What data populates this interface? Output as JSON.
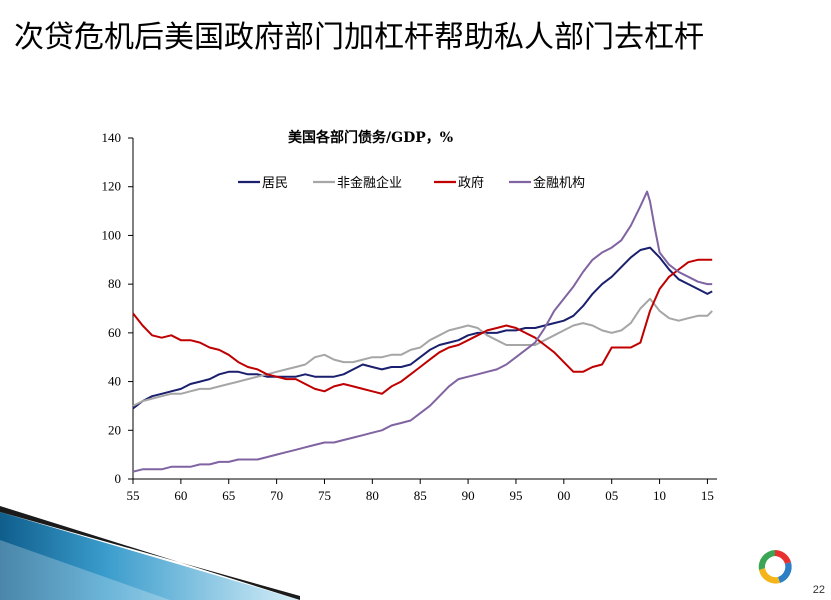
{
  "slide": {
    "title": "次贷危机后美国政府部门加杠杆帮助私人部门去杠杆",
    "page_number": "22"
  },
  "chart_data": {
    "type": "line",
    "title": "美国各部门债务/GDP，%",
    "xlabel": "",
    "ylabel": "",
    "xlim": [
      1955,
      2016
    ],
    "ylim": [
      0,
      140
    ],
    "yticks": [
      0,
      20,
      40,
      60,
      80,
      100,
      120,
      140
    ],
    "xticks": [
      {
        "value": 1955,
        "label": "55"
      },
      {
        "value": 1960,
        "label": "60"
      },
      {
        "value": 1965,
        "label": "65"
      },
      {
        "value": 1970,
        "label": "70"
      },
      {
        "value": 1975,
        "label": "75"
      },
      {
        "value": 1980,
        "label": "80"
      },
      {
        "value": 1985,
        "label": "85"
      },
      {
        "value": 1990,
        "label": "90"
      },
      {
        "value": 1995,
        "label": "95"
      },
      {
        "value": 2000,
        "label": "00"
      },
      {
        "value": 2005,
        "label": "05"
      },
      {
        "value": 2010,
        "label": "10"
      },
      {
        "value": 2015,
        "label": "15"
      }
    ],
    "grid": false,
    "legend_position": "top-center",
    "series": [
      {
        "name": "居民",
        "color": "#1a1f6e",
        "points": [
          [
            1955,
            29
          ],
          [
            1956,
            32
          ],
          [
            1957,
            34
          ],
          [
            1958,
            35
          ],
          [
            1959,
            36
          ],
          [
            1960,
            37
          ],
          [
            1961,
            39
          ],
          [
            1962,
            40
          ],
          [
            1963,
            41
          ],
          [
            1964,
            43
          ],
          [
            1965,
            44
          ],
          [
            1966,
            44
          ],
          [
            1967,
            43
          ],
          [
            1968,
            43
          ],
          [
            1969,
            42
          ],
          [
            1970,
            42
          ],
          [
            1971,
            42
          ],
          [
            1972,
            42
          ],
          [
            1973,
            43
          ],
          [
            1974,
            42
          ],
          [
            1975,
            42
          ],
          [
            1976,
            42
          ],
          [
            1977,
            43
          ],
          [
            1978,
            45
          ],
          [
            1979,
            47
          ],
          [
            1980,
            46
          ],
          [
            1981,
            45
          ],
          [
            1982,
            46
          ],
          [
            1983,
            46
          ],
          [
            1984,
            47
          ],
          [
            1985,
            50
          ],
          [
            1986,
            53
          ],
          [
            1987,
            55
          ],
          [
            1988,
            56
          ],
          [
            1989,
            57
          ],
          [
            1990,
            59
          ],
          [
            1991,
            60
          ],
          [
            1992,
            60
          ],
          [
            1993,
            60
          ],
          [
            1994,
            61
          ],
          [
            1995,
            61
          ],
          [
            1996,
            62
          ],
          [
            1997,
            62
          ],
          [
            1998,
            63
          ],
          [
            1999,
            64
          ],
          [
            2000,
            65
          ],
          [
            2001,
            67
          ],
          [
            2002,
            71
          ],
          [
            2003,
            76
          ],
          [
            2004,
            80
          ],
          [
            2005,
            83
          ],
          [
            2006,
            87
          ],
          [
            2007,
            91
          ],
          [
            2008,
            94
          ],
          [
            2009,
            95
          ],
          [
            2010,
            91
          ],
          [
            2011,
            86
          ],
          [
            2012,
            82
          ],
          [
            2013,
            80
          ],
          [
            2014,
            78
          ],
          [
            2015,
            76
          ],
          [
            2015.5,
            77
          ]
        ]
      },
      {
        "name": "非金融企业",
        "color": "#a6a6a6",
        "points": [
          [
            1955,
            30
          ],
          [
            1956,
            32
          ],
          [
            1957,
            33
          ],
          [
            1958,
            34
          ],
          [
            1959,
            35
          ],
          [
            1960,
            35
          ],
          [
            1961,
            36
          ],
          [
            1962,
            37
          ],
          [
            1963,
            37
          ],
          [
            1964,
            38
          ],
          [
            1965,
            39
          ],
          [
            1966,
            40
          ],
          [
            1967,
            41
          ],
          [
            1968,
            42
          ],
          [
            1969,
            43
          ],
          [
            1970,
            44
          ],
          [
            1971,
            45
          ],
          [
            1972,
            46
          ],
          [
            1973,
            47
          ],
          [
            1974,
            50
          ],
          [
            1975,
            51
          ],
          [
            1976,
            49
          ],
          [
            1977,
            48
          ],
          [
            1978,
            48
          ],
          [
            1979,
            49
          ],
          [
            1980,
            50
          ],
          [
            1981,
            50
          ],
          [
            1982,
            51
          ],
          [
            1983,
            51
          ],
          [
            1984,
            53
          ],
          [
            1985,
            54
          ],
          [
            1986,
            57
          ],
          [
            1987,
            59
          ],
          [
            1988,
            61
          ],
          [
            1989,
            62
          ],
          [
            1990,
            63
          ],
          [
            1991,
            62
          ],
          [
            1992,
            59
          ],
          [
            1993,
            57
          ],
          [
            1994,
            55
          ],
          [
            1995,
            55
          ],
          [
            1996,
            55
          ],
          [
            1997,
            55
          ],
          [
            1998,
            57
          ],
          [
            1999,
            59
          ],
          [
            2000,
            61
          ],
          [
            2001,
            63
          ],
          [
            2002,
            64
          ],
          [
            2003,
            63
          ],
          [
            2004,
            61
          ],
          [
            2005,
            60
          ],
          [
            2006,
            61
          ],
          [
            2007,
            64
          ],
          [
            2008,
            70
          ],
          [
            2009,
            74
          ],
          [
            2010,
            69
          ],
          [
            2011,
            66
          ],
          [
            2012,
            65
          ],
          [
            2013,
            66
          ],
          [
            2014,
            67
          ],
          [
            2015,
            67
          ],
          [
            2015.5,
            69
          ]
        ]
      },
      {
        "name": "政府",
        "color": "#c00000",
        "points": [
          [
            1955,
            68
          ],
          [
            1956,
            63
          ],
          [
            1957,
            59
          ],
          [
            1958,
            58
          ],
          [
            1959,
            59
          ],
          [
            1960,
            57
          ],
          [
            1961,
            57
          ],
          [
            1962,
            56
          ],
          [
            1963,
            54
          ],
          [
            1964,
            53
          ],
          [
            1965,
            51
          ],
          [
            1966,
            48
          ],
          [
            1967,
            46
          ],
          [
            1968,
            45
          ],
          [
            1969,
            43
          ],
          [
            1970,
            42
          ],
          [
            1971,
            41
          ],
          [
            1972,
            41
          ],
          [
            1973,
            39
          ],
          [
            1974,
            37
          ],
          [
            1975,
            36
          ],
          [
            1976,
            38
          ],
          [
            1977,
            39
          ],
          [
            1978,
            38
          ],
          [
            1979,
            37
          ],
          [
            1980,
            36
          ],
          [
            1981,
            35
          ],
          [
            1982,
            38
          ],
          [
            1983,
            40
          ],
          [
            1984,
            43
          ],
          [
            1985,
            46
          ],
          [
            1986,
            49
          ],
          [
            1987,
            52
          ],
          [
            1988,
            54
          ],
          [
            1989,
            55
          ],
          [
            1990,
            57
          ],
          [
            1991,
            59
          ],
          [
            1992,
            61
          ],
          [
            1993,
            62
          ],
          [
            1994,
            63
          ],
          [
            1995,
            62
          ],
          [
            1996,
            60
          ],
          [
            1997,
            58
          ],
          [
            1998,
            55
          ],
          [
            1999,
            52
          ],
          [
            2000,
            48
          ],
          [
            2001,
            44
          ],
          [
            2002,
            44
          ],
          [
            2003,
            46
          ],
          [
            2004,
            47
          ],
          [
            2005,
            54
          ],
          [
            2006,
            54
          ],
          [
            2007,
            54
          ],
          [
            2008,
            56
          ],
          [
            2009,
            69
          ],
          [
            2010,
            78
          ],
          [
            2011,
            83
          ],
          [
            2012,
            86
          ],
          [
            2013,
            89
          ],
          [
            2014,
            90
          ],
          [
            2015,
            90
          ],
          [
            2015.5,
            90
          ]
        ]
      },
      {
        "name": "金融机构",
        "color": "#8064a2",
        "points": [
          [
            1955,
            3
          ],
          [
            1956,
            4
          ],
          [
            1957,
            4
          ],
          [
            1958,
            4
          ],
          [
            1959,
            5
          ],
          [
            1960,
            5
          ],
          [
            1961,
            5
          ],
          [
            1962,
            6
          ],
          [
            1963,
            6
          ],
          [
            1964,
            7
          ],
          [
            1965,
            7
          ],
          [
            1966,
            8
          ],
          [
            1967,
            8
          ],
          [
            1968,
            8
          ],
          [
            1969,
            9
          ],
          [
            1970,
            10
          ],
          [
            1971,
            11
          ],
          [
            1972,
            12
          ],
          [
            1973,
            13
          ],
          [
            1974,
            14
          ],
          [
            1975,
            15
          ],
          [
            1976,
            15
          ],
          [
            1977,
            16
          ],
          [
            1978,
            17
          ],
          [
            1979,
            18
          ],
          [
            1980,
            19
          ],
          [
            1981,
            20
          ],
          [
            1982,
            22
          ],
          [
            1983,
            23
          ],
          [
            1984,
            24
          ],
          [
            1985,
            27
          ],
          [
            1986,
            30
          ],
          [
            1987,
            34
          ],
          [
            1988,
            38
          ],
          [
            1989,
            41
          ],
          [
            1990,
            42
          ],
          [
            1991,
            43
          ],
          [
            1992,
            44
          ],
          [
            1993,
            45
          ],
          [
            1994,
            47
          ],
          [
            1995,
            50
          ],
          [
            1996,
            53
          ],
          [
            1997,
            56
          ],
          [
            1998,
            62
          ],
          [
            1999,
            69
          ],
          [
            2000,
            74
          ],
          [
            2001,
            79
          ],
          [
            2002,
            85
          ],
          [
            2003,
            90
          ],
          [
            2004,
            93
          ],
          [
            2005,
            95
          ],
          [
            2006,
            98
          ],
          [
            2007,
            104
          ],
          [
            2008,
            112
          ],
          [
            2008.7,
            118
          ],
          [
            2009,
            114
          ],
          [
            2009.5,
            103
          ],
          [
            2010,
            93
          ],
          [
            2011,
            88
          ],
          [
            2012,
            85
          ],
          [
            2013,
            83
          ],
          [
            2014,
            81
          ],
          [
            2015,
            80
          ],
          [
            2015.5,
            80
          ]
        ]
      }
    ]
  }
}
